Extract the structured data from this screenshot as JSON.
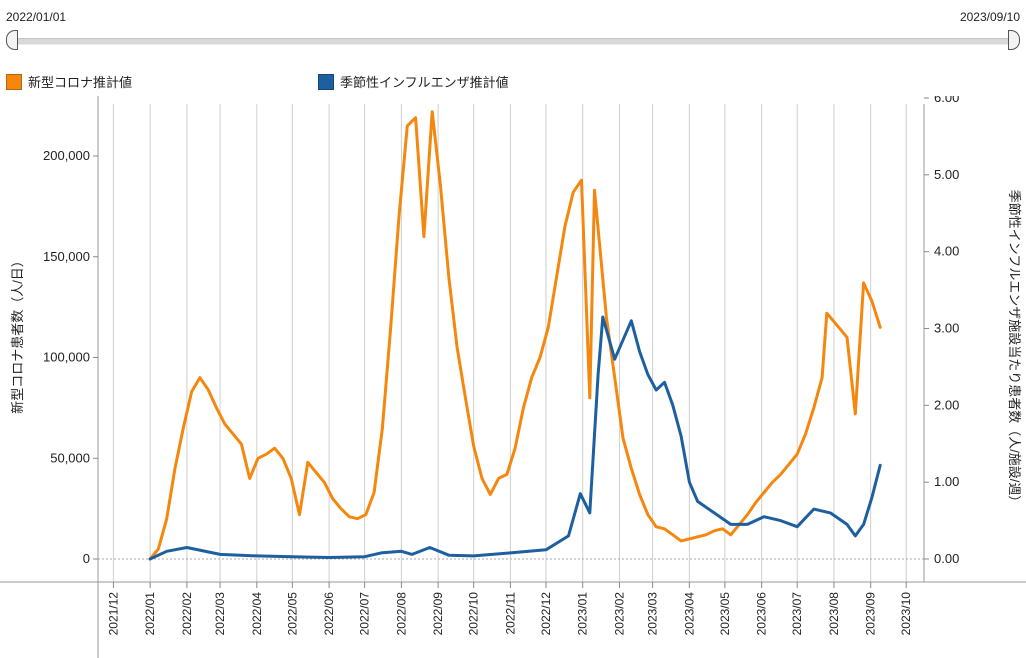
{
  "range_selector": {
    "start_label": "2022/01/01",
    "end_label": "2023/09/10"
  },
  "legend": [
    {
      "label": "新型コロナ推計値",
      "color": "#f5870f"
    },
    {
      "label": "季節性インフルエンザ推計値",
      "color": "#1e5fa0"
    }
  ],
  "chart_data": {
    "type": "line",
    "ylabel_left": "新型コロナ患者数（人/日）",
    "ylabel_right": "季節性インフルエンザ施設当たり患者数（人/施設/週）",
    "ylim_left": [
      0,
      230000
    ],
    "ylim_right": [
      0,
      6.0
    ],
    "yticks_left": [
      "0",
      "50,000",
      "100,000",
      "150,000",
      "200,000"
    ],
    "yticks_right": [
      "0.00",
      "1.00",
      "2.00",
      "3.00",
      "4.00",
      "5.00",
      "6.00"
    ],
    "x_tick_labels": [
      "2021/12",
      "2022/01",
      "2022/02",
      "2022/03",
      "2022/04",
      "2022/05",
      "2022/06",
      "2022/07",
      "2022/08",
      "2022/09",
      "2022/10",
      "2022/11",
      "2022/12",
      "2023/01",
      "2023/02",
      "2023/03",
      "2023/04",
      "2023/05",
      "2023/06",
      "2023/07",
      "2023/08",
      "2023/09",
      "2023/10"
    ],
    "grid": true,
    "legend_position": "top-left",
    "series": [
      {
        "name": "新型コロナ推計値",
        "axis": "left",
        "color": "#f5870f",
        "points": [
          [
            "2022-01-01",
            0
          ],
          [
            "2022-01-08",
            5000
          ],
          [
            "2022-01-15",
            20000
          ],
          [
            "2022-01-22",
            45000
          ],
          [
            "2022-01-29",
            65000
          ],
          [
            "2022-02-05",
            83000
          ],
          [
            "2022-02-12",
            90000
          ],
          [
            "2022-02-19",
            84000
          ],
          [
            "2022-02-26",
            75000
          ],
          [
            "2022-03-05",
            67000
          ],
          [
            "2022-03-12",
            62000
          ],
          [
            "2022-03-19",
            57000
          ],
          [
            "2022-03-26",
            40000
          ],
          [
            "2022-04-02",
            50000
          ],
          [
            "2022-04-09",
            52000
          ],
          [
            "2022-04-16",
            55000
          ],
          [
            "2022-04-23",
            50000
          ],
          [
            "2022-04-30",
            40000
          ],
          [
            "2022-05-07",
            22000
          ],
          [
            "2022-05-14",
            48000
          ],
          [
            "2022-05-21",
            43000
          ],
          [
            "2022-05-28",
            38000
          ],
          [
            "2022-06-04",
            30000
          ],
          [
            "2022-06-11",
            25000
          ],
          [
            "2022-06-18",
            21000
          ],
          [
            "2022-06-25",
            20000
          ],
          [
            "2022-07-02",
            22000
          ],
          [
            "2022-07-09",
            33000
          ],
          [
            "2022-07-16",
            65000
          ],
          [
            "2022-07-23",
            115000
          ],
          [
            "2022-07-30",
            170000
          ],
          [
            "2022-08-06",
            215000
          ],
          [
            "2022-08-13",
            219000
          ],
          [
            "2022-08-20",
            160000
          ],
          [
            "2022-08-27",
            222000
          ],
          [
            "2022-09-03",
            185000
          ],
          [
            "2022-09-10",
            140000
          ],
          [
            "2022-09-17",
            105000
          ],
          [
            "2022-09-24",
            80000
          ],
          [
            "2022-10-01",
            56000
          ],
          [
            "2022-10-08",
            40000
          ],
          [
            "2022-10-15",
            32000
          ],
          [
            "2022-10-22",
            40000
          ],
          [
            "2022-10-29",
            42000
          ],
          [
            "2022-11-05",
            55000
          ],
          [
            "2022-11-12",
            75000
          ],
          [
            "2022-11-19",
            90000
          ],
          [
            "2022-11-26",
            100000
          ],
          [
            "2022-12-03",
            115000
          ],
          [
            "2022-12-10",
            140000
          ],
          [
            "2022-12-17",
            165000
          ],
          [
            "2022-12-24",
            182000
          ],
          [
            "2022-12-31",
            188000
          ],
          [
            "2023-01-07",
            80000
          ],
          [
            "2023-01-11",
            183000
          ],
          [
            "2023-01-21",
            120000
          ],
          [
            "2023-01-28",
            90000
          ],
          [
            "2023-02-04",
            60000
          ],
          [
            "2023-02-11",
            45000
          ],
          [
            "2023-02-18",
            32000
          ],
          [
            "2023-02-25",
            22000
          ],
          [
            "2023-03-04",
            16000
          ],
          [
            "2023-03-11",
            15000
          ],
          [
            "2023-03-18",
            12000
          ],
          [
            "2023-03-25",
            9000
          ],
          [
            "2023-04-01",
            10000
          ],
          [
            "2023-04-08",
            11000
          ],
          [
            "2023-04-15",
            12000
          ],
          [
            "2023-04-22",
            14000
          ],
          [
            "2023-04-29",
            15000
          ],
          [
            "2023-05-06",
            12000
          ],
          [
            "2023-05-13",
            17000
          ],
          [
            "2023-05-20",
            22000
          ],
          [
            "2023-05-27",
            28000
          ],
          [
            "2023-06-03",
            33000
          ],
          [
            "2023-06-10",
            38000
          ],
          [
            "2023-06-17",
            42000
          ],
          [
            "2023-06-24",
            47000
          ],
          [
            "2023-07-01",
            52000
          ],
          [
            "2023-07-08",
            62000
          ],
          [
            "2023-07-15",
            75000
          ],
          [
            "2023-07-22",
            90000
          ],
          [
            "2023-07-26",
            122000
          ],
          [
            "2023-08-05",
            115000
          ],
          [
            "2023-08-12",
            110000
          ],
          [
            "2023-08-19",
            72000
          ],
          [
            "2023-08-26",
            137000
          ],
          [
            "2023-09-02",
            128000
          ],
          [
            "2023-09-09",
            115000
          ]
        ]
      },
      {
        "name": "季節性インフルエンザ推計値",
        "axis": "right",
        "color": "#1e5fa0",
        "points": [
          [
            "2022-01-01",
            0.0
          ],
          [
            "2022-01-15",
            0.1
          ],
          [
            "2022-02-01",
            0.15
          ],
          [
            "2022-03-01",
            0.06
          ],
          [
            "2022-04-01",
            0.04
          ],
          [
            "2022-05-01",
            0.03
          ],
          [
            "2022-06-01",
            0.02
          ],
          [
            "2022-07-01",
            0.03
          ],
          [
            "2022-07-15",
            0.08
          ],
          [
            "2022-08-01",
            0.1
          ],
          [
            "2022-08-10",
            0.06
          ],
          [
            "2022-08-25",
            0.15
          ],
          [
            "2022-09-10",
            0.05
          ],
          [
            "2022-10-01",
            0.04
          ],
          [
            "2022-11-01",
            0.08
          ],
          [
            "2022-12-01",
            0.12
          ],
          [
            "2022-12-20",
            0.3
          ],
          [
            "2022-12-30",
            0.85
          ],
          [
            "2023-01-07",
            0.6
          ],
          [
            "2023-01-14",
            2.4
          ],
          [
            "2023-01-18",
            3.15
          ],
          [
            "2023-01-28",
            2.6
          ],
          [
            "2023-02-11",
            3.1
          ],
          [
            "2023-02-18",
            2.7
          ],
          [
            "2023-02-25",
            2.4
          ],
          [
            "2023-03-04",
            2.2
          ],
          [
            "2023-03-11",
            2.3
          ],
          [
            "2023-03-18",
            2.0
          ],
          [
            "2023-03-25",
            1.6
          ],
          [
            "2023-04-01",
            1.0
          ],
          [
            "2023-04-08",
            0.75
          ],
          [
            "2023-04-22",
            0.6
          ],
          [
            "2023-05-06",
            0.45
          ],
          [
            "2023-05-20",
            0.45
          ],
          [
            "2023-06-03",
            0.55
          ],
          [
            "2023-06-17",
            0.5
          ],
          [
            "2023-07-01",
            0.42
          ],
          [
            "2023-07-15",
            0.65
          ],
          [
            "2023-07-29",
            0.6
          ],
          [
            "2023-08-12",
            0.45
          ],
          [
            "2023-08-19",
            0.3
          ],
          [
            "2023-08-26",
            0.45
          ],
          [
            "2023-09-02",
            0.8
          ],
          [
            "2023-09-09",
            1.22
          ]
        ]
      }
    ]
  }
}
